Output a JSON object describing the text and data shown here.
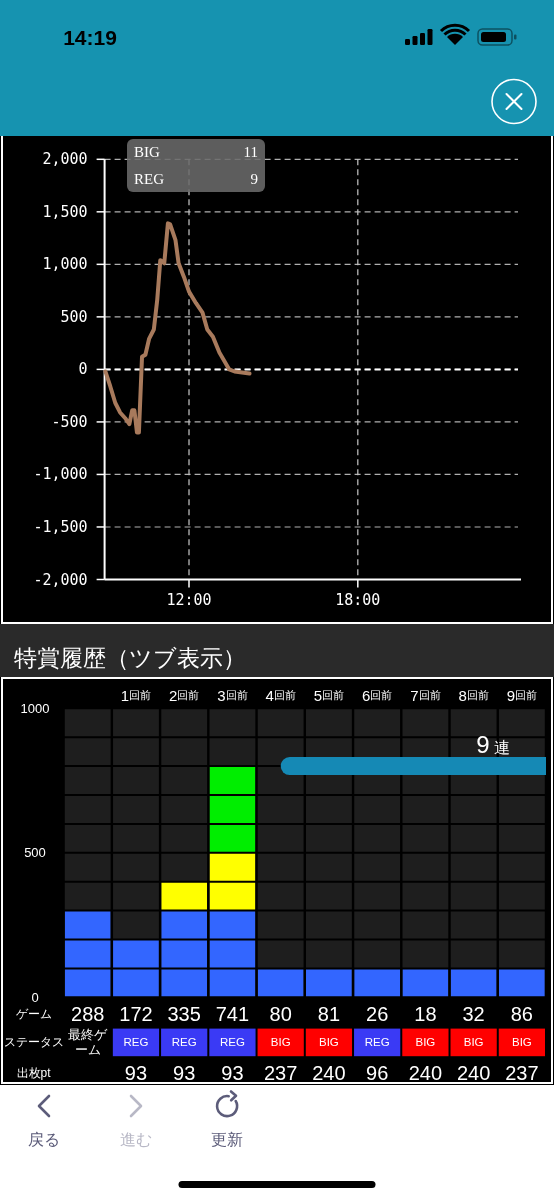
{
  "chart_data": [
    {
      "type": "other",
      "annotations": [
        "14:19"
      ]
    },
    {
      "type": "line",
      "x": [
        9.03,
        9.2,
        9.38,
        9.55,
        9.75,
        9.88,
        9.98,
        10.06,
        10.15,
        10.22,
        10.33,
        10.45,
        10.58,
        10.75,
        10.87,
        10.98,
        11.12,
        11.25,
        11.33,
        11.52,
        11.63,
        11.82,
        12.0,
        12.25,
        12.48,
        12.65,
        12.85,
        13.08,
        13.43,
        13.62,
        14.15
      ],
      "series": [
        {
          "color": "#a87a5c",
          "values": [
            -20,
            -160,
            -320,
            -410,
            -470,
            -520,
            -390,
            -390,
            -600,
            -600,
            120,
            140,
            290,
            380,
            660,
            1040,
            1010,
            1390,
            1380,
            1230,
            1010,
            880,
            740,
            630,
            540,
            380,
            310,
            160,
            0,
            -20,
            -40
          ]
        }
      ],
      "xlim": [
        9,
        23.8
      ],
      "xticks": [
        {
          "value": 12,
          "label": "12:00"
        },
        {
          "value": 18,
          "label": "18:00"
        }
      ],
      "ylim": [
        -2000,
        2000
      ],
      "yticks": [
        {
          "value": -2000,
          "label": "-2,000"
        },
        {
          "value": -1500,
          "label": "-1,500"
        },
        {
          "value": -1000,
          "label": "-1,000"
        },
        -500,
        0,
        500,
        {
          "value": 1000,
          "label": "1,000"
        },
        {
          "value": 1500,
          "label": "1,500"
        },
        {
          "value": 2000,
          "label": "2,000"
        }
      ],
      "grid": true,
      "ref_lines": [
        {
          "axis": "y",
          "value": 0,
          "color": "#ffffff",
          "line_style": "dashed"
        }
      ],
      "annotations": [
        "BIG 11",
        "REG 9"
      ]
    },
    {
      "type": "bar",
      "title": "特賞履歴（ツブ表示）",
      "stacked": true,
      "categories": [
        null,
        "1回前",
        "2回前",
        "3回前",
        "4回前",
        "5回前",
        "6回前",
        "7回前",
        "8回前",
        "9回前"
      ],
      "series": [
        {
          "color": "#3366ff",
          "values": [
            300,
            200,
            300,
            300,
            100,
            100,
            100,
            100,
            100,
            100
          ]
        },
        {
          "color": "#ffff00",
          "values": [
            null,
            null,
            100,
            200,
            null,
            null,
            null,
            null,
            null,
            null
          ]
        },
        {
          "color": "#00ee00",
          "values": [
            null,
            null,
            null,
            300,
            null,
            null,
            null,
            null,
            null,
            null
          ]
        }
      ],
      "ylim": [
        0,
        1000
      ],
      "yticks": [
        0,
        {
          "value": 100,
          "label": null
        },
        {
          "value": 200,
          "label": null
        },
        {
          "value": 300,
          "label": null
        },
        {
          "value": 400,
          "label": null
        },
        500,
        {
          "value": 600,
          "label": null
        },
        {
          "value": 700,
          "label": null
        },
        {
          "value": 800,
          "label": null
        },
        {
          "value": 900,
          "label": null
        },
        1000
      ],
      "grid": true,
      "bands": [
        {
          "axis": "x",
          "from": "4回前",
          "to": "9回前",
          "label": "9 連",
          "color": "#1589b5"
        }
      ]
    },
    {
      "type": "other",
      "y_categories": [
        "ゲーム",
        "ステータス",
        "出枚pt"
      ],
      "cell_labels": [
        [
          "288",
          "172",
          "335",
          "741",
          "80",
          "81",
          "26",
          "18",
          "32",
          "86"
        ],
        [
          "最終ゲーム",
          "REG",
          "REG",
          "REG",
          "BIG",
          "BIG",
          "REG",
          "BIG",
          "BIG",
          "BIG"
        ],
        [
          null,
          "93",
          "93",
          "93",
          "237",
          "240",
          "96",
          "240",
          "240",
          "237"
        ]
      ],
      "colors": [
        [
          null,
          null,
          null,
          null,
          null,
          null,
          null,
          null,
          null,
          null
        ],
        [
          null,
          "#3a3af5",
          "#3a3af5",
          "#3a3af5",
          "#ff0000",
          "#ff0000",
          "#3a3af5",
          "#ff0000",
          "#ff0000",
          "#ff0000"
        ],
        [
          null,
          null,
          null,
          null,
          null,
          null,
          null,
          null,
          null,
          null
        ]
      ]
    },
    {
      "type": "other",
      "annotations": [
        "戻る",
        "進む",
        "更新"
      ]
    }
  ]
}
